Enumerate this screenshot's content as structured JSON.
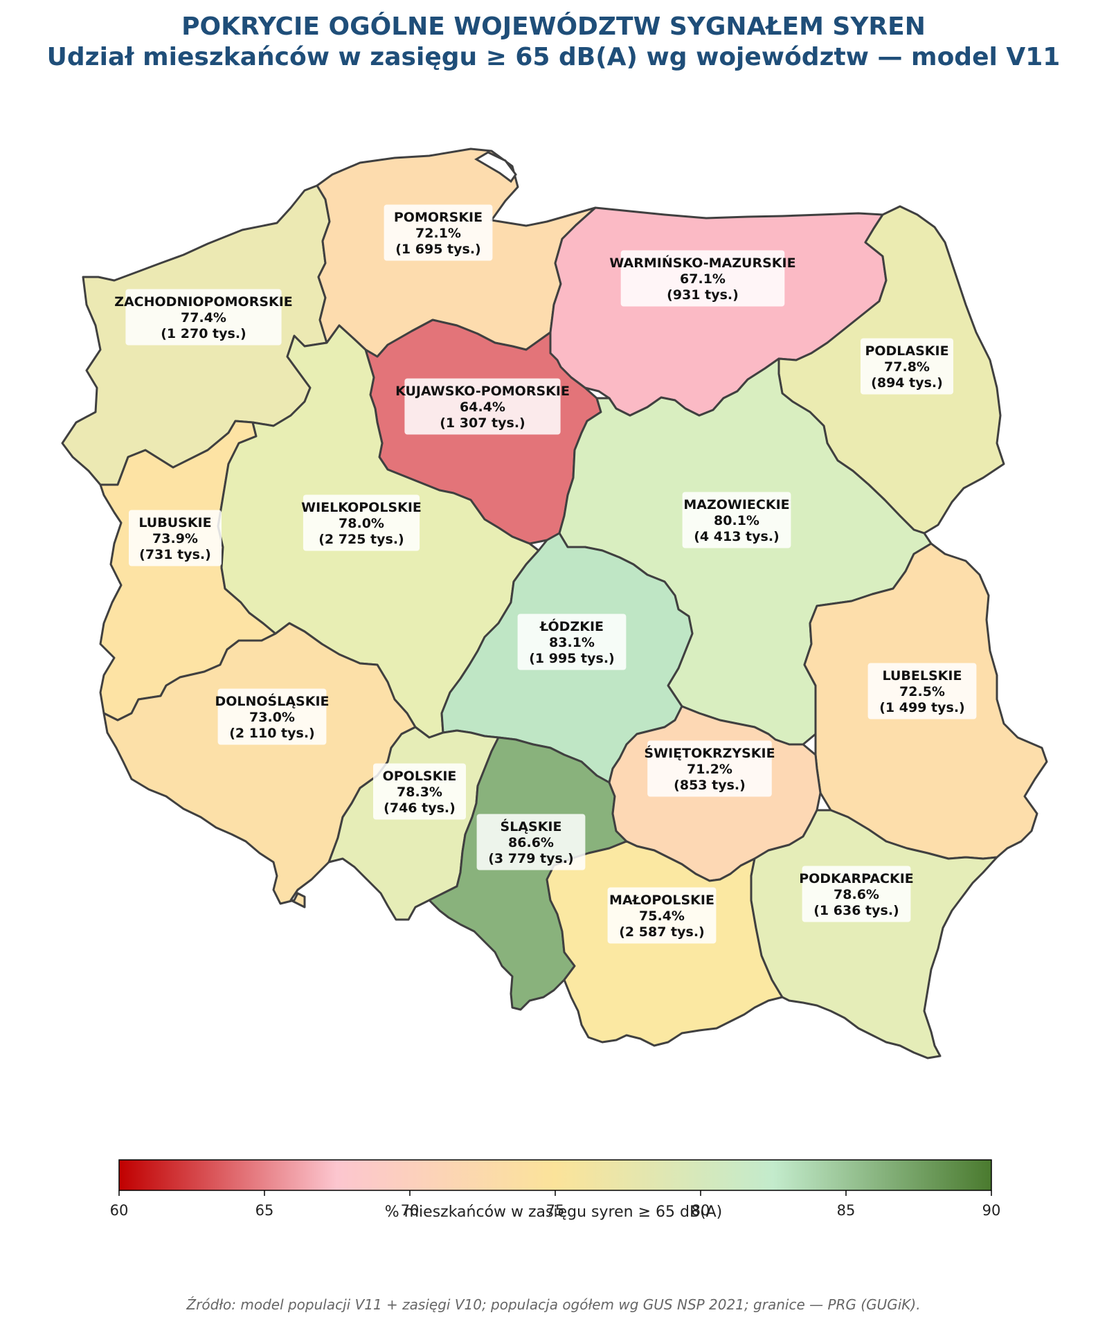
{
  "title": "POKRYCIE OGÓLNE WOJEWÓDZTW SYGNAŁEM SYREN",
  "subtitle": "Udział mieszkańców w zasięgu ≥ 65 dB(A) wg województw — model V11",
  "colorbar": {
    "label": "% mieszkańców w zasięgu syren ≥ 65 dB(A)",
    "min": 60,
    "max": 90,
    "ticks": [
      "60",
      "65",
      "70",
      "75",
      "80",
      "85",
      "90"
    ],
    "stops": [
      {
        "v": 60,
        "color": "#c00000"
      },
      {
        "v": 67.5,
        "color": "#fcc6cf"
      },
      {
        "v": 75,
        "color": "#fbe39a"
      },
      {
        "v": 82.5,
        "color": "#c3ebcc"
      },
      {
        "v": 90,
        "color": "#4a7a2e"
      }
    ]
  },
  "source": "Źródło: model populacji V11 + zasięgi V10; populacja ogółem wg GUS NSP 2021; granice — PRG (GUGiK).",
  "regions": [
    {
      "id": "zachodniopomorskie",
      "name": "ZACHODNIOPOMORSKIE",
      "pct": "77.4%",
      "pop": "(1 270 tys.)",
      "value": 77.4,
      "color": "#ece9b3"
    },
    {
      "id": "pomorskie",
      "name": "POMORSKIE",
      "pct": "72.1%",
      "pop": "(1 695 tys.)",
      "value": 72.1,
      "color": "#fddcae"
    },
    {
      "id": "warminsko-mazurskie",
      "name": "WARMIŃSKO-MAZURSKIE",
      "pct": "67.1%",
      "pop": "(931 tys.)",
      "value": 67.1,
      "color": "#fbbac5"
    },
    {
      "id": "podlaskie",
      "name": "PODLASKIE",
      "pct": "77.8%",
      "pop": "(894 tys.)",
      "value": 77.8,
      "color": "#ebebb1"
    },
    {
      "id": "kujawsko-pomorskie",
      "name": "KUJAWSKO-POMORSKIE",
      "pct": "64.4%",
      "pop": "(1 307 tys.)",
      "value": 64.4,
      "color": "#e37479"
    },
    {
      "id": "lubuskie",
      "name": "LUBUSKIE",
      "pct": "73.9%",
      "pop": "(731 tys.)",
      "value": 73.9,
      "color": "#fde3a4"
    },
    {
      "id": "wielkopolskie",
      "name": "WIELKOPOLSKIE",
      "pct": "78.0%",
      "pop": "(2 725 tys.)",
      "value": 78.0,
      "color": "#e8eeb4"
    },
    {
      "id": "mazowieckie",
      "name": "MAZOWIECKIE",
      "pct": "80.1%",
      "pop": "(4 413 tys.)",
      "value": 80.1,
      "color": "#d9eec0"
    },
    {
      "id": "lodzkie",
      "name": "ŁÓDZKIE",
      "pct": "83.1%",
      "pop": "(1 995 tys.)",
      "value": 83.1,
      "color": "#bfe6c5"
    },
    {
      "id": "lubelskie",
      "name": "LUBELSKIE",
      "pct": "72.5%",
      "pop": "(1 499 tys.)",
      "value": 72.5,
      "color": "#fddeab"
    },
    {
      "id": "dolnoslaskie",
      "name": "DOLNOŚLĄSKIE",
      "pct": "73.0%",
      "pop": "(2 110 tys.)",
      "value": 73.0,
      "color": "#fce0a8"
    },
    {
      "id": "swietokrzyskie",
      "name": "ŚWIĘTOKRZYSKIE",
      "pct": "71.2%",
      "pop": "(853 tys.)",
      "value": 71.2,
      "color": "#fdd8b4"
    },
    {
      "id": "opolskie",
      "name": "OPOLSKIE",
      "pct": "78.3%",
      "pop": "(746 tys.)",
      "value": 78.3,
      "color": "#e6edb7"
    },
    {
      "id": "slaskie",
      "name": "ŚLĄSKIE",
      "pct": "86.6%",
      "pop": "(3 779 tys.)",
      "value": 86.6,
      "color": "#89b27c"
    },
    {
      "id": "malopolskie",
      "name": "MAŁOPOLSKIE",
      "pct": "75.4%",
      "pop": "(2 587 tys.)",
      "value": 75.4,
      "color": "#fbe8a2"
    },
    {
      "id": "podkarpackie",
      "name": "PODKARPACKIE",
      "pct": "78.6%",
      "pop": "(1 636 tys.)",
      "value": 78.6,
      "color": "#e5edb8"
    }
  ]
}
